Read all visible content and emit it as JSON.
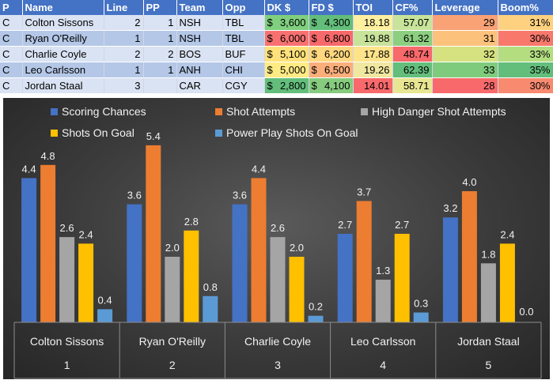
{
  "table": {
    "headers": [
      "P",
      "Name",
      "Line",
      "PP",
      "Team",
      "Opp",
      "DK $",
      "FD $",
      "TOI",
      "CF%",
      "Leverage",
      "Boom%"
    ],
    "rows": [
      {
        "p": "C",
        "name": "Colton Sissons",
        "line": "2",
        "pp": "1",
        "team": "NSH",
        "opp": "TBL",
        "dk": "3,600",
        "fd": "4,300",
        "toi": "18.18",
        "cf": "57.07",
        "lev": "29",
        "boom": "31%"
      },
      {
        "p": "C",
        "name": "Ryan O'Reilly",
        "line": "1",
        "pp": "1",
        "team": "NSH",
        "opp": "TBL",
        "dk": "6,000",
        "fd": "6,800",
        "toi": "19.88",
        "cf": "61.32",
        "lev": "31",
        "boom": "30%"
      },
      {
        "p": "C",
        "name": "Charlie Coyle",
        "line": "2",
        "pp": "2",
        "team": "BOS",
        "opp": "BUF",
        "dk": "5,100",
        "fd": "6,200",
        "toi": "17.88",
        "cf": "48.74",
        "lev": "32",
        "boom": "33%"
      },
      {
        "p": "C",
        "name": "Leo Carlsson",
        "line": "1",
        "pp": "1",
        "team": "ANH",
        "opp": "CHI",
        "dk": "5,000",
        "fd": "6,500",
        "toi": "19.26",
        "cf": "62.39",
        "lev": "33",
        "boom": "35%"
      },
      {
        "p": "C",
        "name": "Jordan Staal",
        "line": "3",
        "pp": "",
        "team": "CAR",
        "opp": "CGY",
        "dk": "2,800",
        "fd": "4,100",
        "toi": "14.01",
        "cf": "58.71",
        "lev": "28",
        "boom": "30%"
      }
    ],
    "currency_symbol": "$",
    "cell_colors": {
      "dk": [
        "#7fcf7f",
        "#f87171",
        "#ffe17a",
        "#ffeb84",
        "#63be7b"
      ],
      "fd": [
        "#63be7b",
        "#f8696b",
        "#ffd77e",
        "#fbae7a",
        "#86cb7e"
      ],
      "toi": [
        "#fff0a0",
        "#c8e39a",
        "#ffe38a",
        "#f0e7a0",
        "#f8696b"
      ],
      "cf": [
        "#c8e39a",
        "#8ccf80",
        "#f8696b",
        "#63be7b",
        "#e8e692"
      ],
      "lev": [
        "#f9a276",
        "#fcc27c",
        "#d6e280",
        "#7fcb7d",
        "#f8696b"
      ],
      "boom": [
        "#fdd17f",
        "#f8796c",
        "#b4dd80",
        "#63be7b",
        "#f88a70"
      ]
    }
  },
  "chart_data": {
    "type": "bar",
    "categories": [
      {
        "name": "Colton Sissons",
        "index": "1"
      },
      {
        "name": "Ryan O'Reilly",
        "index": "2"
      },
      {
        "name": "Charlie Coyle",
        "index": "3"
      },
      {
        "name": "Leo Carlsson",
        "index": "4"
      },
      {
        "name": "Jordan Staal",
        "index": "5"
      }
    ],
    "series": [
      {
        "name": "Scoring Chances",
        "color": "#4472c4",
        "values": [
          4.4,
          3.6,
          3.6,
          2.7,
          3.2
        ]
      },
      {
        "name": "Shot Attempts",
        "color": "#ed7d31",
        "values": [
          4.8,
          5.4,
          4.4,
          3.7,
          4.0
        ]
      },
      {
        "name": "High Danger Shot Attempts",
        "color": "#a5a5a5",
        "values": [
          2.6,
          2.0,
          2.6,
          1.3,
          1.8
        ]
      },
      {
        "name": "Shots On Goal",
        "color": "#ffc000",
        "values": [
          2.4,
          2.8,
          2.0,
          2.7,
          2.4
        ]
      },
      {
        "name": "Power Play Shots On Goal",
        "color": "#5b9bd5",
        "values": [
          0.4,
          0.8,
          0.2,
          0.3,
          0.0
        ]
      }
    ],
    "ylim": [
      0,
      6
    ],
    "legend_position": "top",
    "grid": false,
    "data_labels": true
  }
}
